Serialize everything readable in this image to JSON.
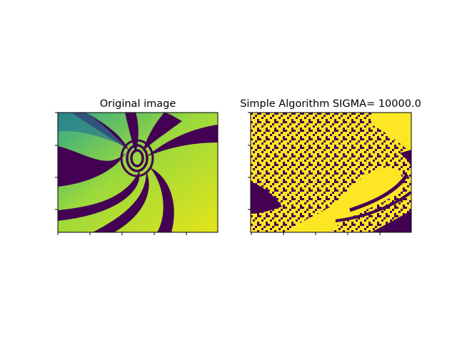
{
  "chart_data": [
    {
      "type": "heatmap",
      "title": "Original image",
      "colormap": "viridis",
      "grid": false,
      "xticklabels": "hidden",
      "yticklabels": "hidden",
      "content": "spiral swirl image with dark purple, teal, green and yellow arms"
    },
    {
      "type": "heatmap",
      "title": "Simple Algorithm SIGMA= 10000.0",
      "colormap": "binary viridis",
      "colors": [
        "#440154",
        "#fde725"
      ],
      "grid": false,
      "xticklabels": "hidden",
      "yticklabels": "hidden",
      "content": "noisy binary segmentation of the spiral image"
    }
  ]
}
